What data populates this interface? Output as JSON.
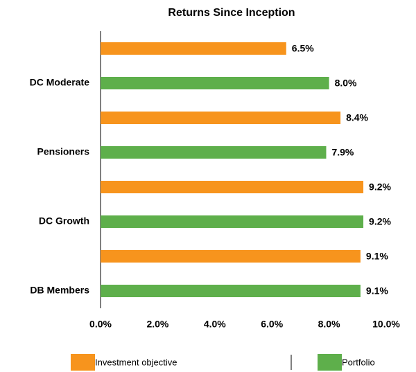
{
  "chart_data": {
    "type": "bar",
    "orientation": "horizontal",
    "title": "Returns Since Inception",
    "categories": [
      "DC Moderate",
      "Pensioners",
      "DC Growth",
      "DB Members"
    ],
    "series": [
      {
        "name": "Investment objective",
        "color": "#f7941d",
        "values": [
          6.5,
          8.4,
          9.2,
          9.1
        ],
        "value_labels": [
          "6.5%",
          "8.4%",
          "9.2%",
          "9.1%"
        ]
      },
      {
        "name": "Portfolio",
        "color": "#5eaf4b",
        "values": [
          8.0,
          7.9,
          9.2,
          9.1
        ],
        "value_labels": [
          "8.0%",
          "7.9%",
          "9.2%",
          "9.1%"
        ]
      }
    ],
    "xlim": [
      0,
      10
    ],
    "xticks": [
      {
        "value": 0,
        "label": "0.0%"
      },
      {
        "value": 2,
        "label": "2.0%"
      },
      {
        "value": 4,
        "label": "4.0%"
      },
      {
        "value": 6,
        "label": "6.0%"
      },
      {
        "value": 8,
        "label": "8.0%"
      },
      {
        "value": 10,
        "label": "10.0%"
      }
    ],
    "grid": false,
    "legend": "bottom"
  }
}
